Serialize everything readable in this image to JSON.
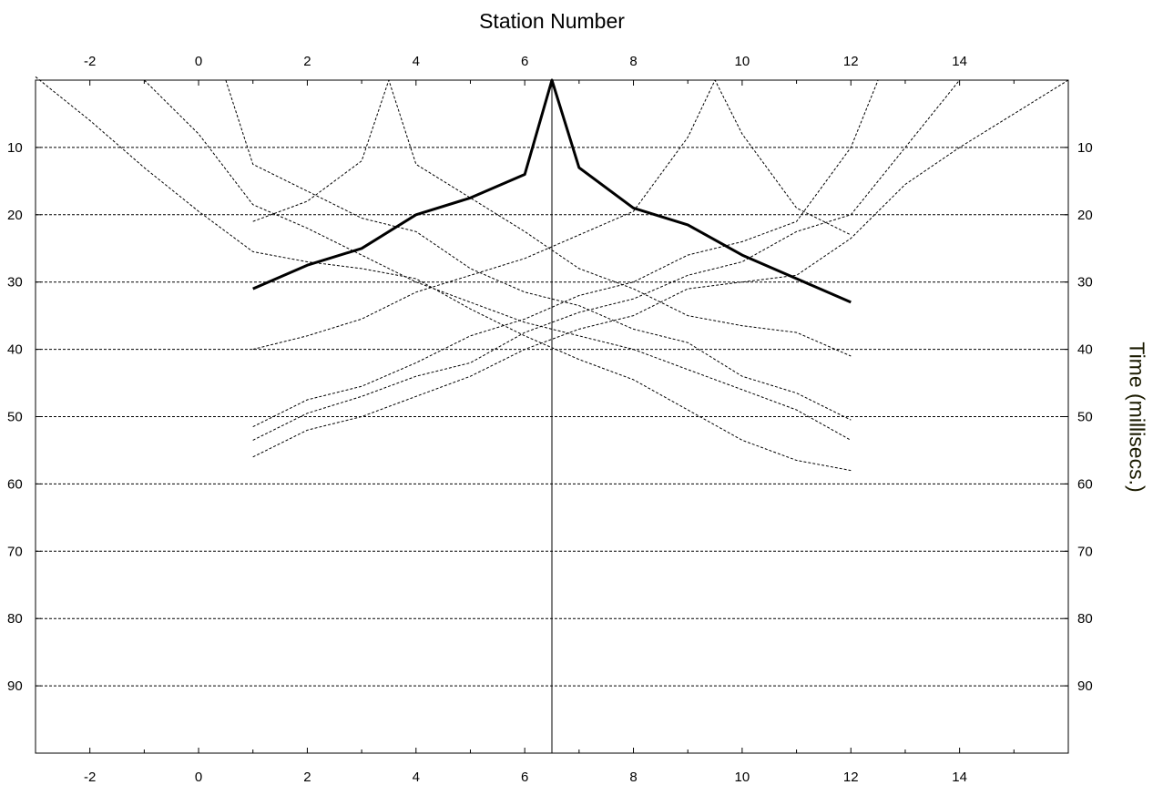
{
  "chart_data": {
    "type": "line",
    "title": "",
    "xlabel": "Station Number",
    "ylabel": "Time (millisecs.)",
    "xlim": [
      -3,
      16
    ],
    "ylim": [
      100,
      0
    ],
    "x_ticks": [
      -2,
      0,
      2,
      4,
      6,
      8,
      10,
      12,
      14
    ],
    "y_ticks": [
      10,
      20,
      30,
      40,
      50,
      60,
      70,
      80,
      90
    ],
    "grid": {
      "horizontal": true,
      "vertical": false
    },
    "vertical_marker_x": 6.5,
    "highlighted_series_index": 0,
    "series": [
      {
        "points": [
          [
            1,
            31
          ],
          [
            2,
            27.5
          ],
          [
            3,
            25
          ],
          [
            4,
            20
          ],
          [
            5,
            17.5
          ],
          [
            6,
            14
          ],
          [
            6.5,
            0
          ],
          [
            7,
            13
          ],
          [
            8,
            19
          ],
          [
            9,
            21.5
          ],
          [
            10,
            26
          ],
          [
            11,
            29.5
          ],
          [
            12,
            33
          ]
        ]
      },
      {
        "points": [
          [
            -3,
            -0.5
          ],
          [
            -2,
            6
          ],
          [
            -1,
            13
          ],
          [
            0,
            19.5
          ],
          [
            1,
            25.5
          ],
          [
            2,
            27
          ],
          [
            3,
            28
          ],
          [
            4,
            29.5
          ],
          [
            5,
            34
          ],
          [
            6,
            38
          ],
          [
            7,
            41.5
          ],
          [
            8,
            44.5
          ],
          [
            9,
            49
          ],
          [
            10,
            53.5
          ],
          [
            11,
            56.5
          ],
          [
            12,
            58
          ]
        ]
      },
      {
        "points": [
          [
            -1,
            0
          ],
          [
            0,
            8
          ],
          [
            1,
            18.5
          ],
          [
            2,
            22
          ],
          [
            3,
            26
          ],
          [
            4,
            30
          ],
          [
            5,
            33
          ],
          [
            6,
            36
          ],
          [
            7,
            38
          ],
          [
            8,
            40
          ],
          [
            9,
            43
          ],
          [
            10,
            46
          ],
          [
            11,
            49
          ],
          [
            12,
            53.5
          ]
        ]
      },
      {
        "points": [
          [
            0.5,
            0
          ],
          [
            1,
            12.5
          ],
          [
            2,
            16.5
          ],
          [
            3,
            20.5
          ],
          [
            4,
            22.5
          ],
          [
            5,
            28
          ],
          [
            6,
            31.5
          ],
          [
            7,
            33.5
          ],
          [
            8,
            37
          ],
          [
            9,
            39
          ],
          [
            10,
            44
          ],
          [
            11,
            46.5
          ],
          [
            12,
            50.5
          ]
        ]
      },
      {
        "points": [
          [
            1,
            21
          ],
          [
            2,
            18
          ],
          [
            3,
            12
          ],
          [
            3.5,
            0
          ],
          [
            4,
            12.5
          ],
          [
            5,
            17.5
          ],
          [
            6,
            22.5
          ],
          [
            7,
            28
          ],
          [
            8,
            31
          ],
          [
            9,
            35
          ],
          [
            10,
            36.5
          ],
          [
            11,
            37.5
          ],
          [
            12,
            41
          ]
        ]
      },
      {
        "points": [
          [
            1,
            40
          ],
          [
            2,
            38
          ],
          [
            3,
            35.5
          ],
          [
            4,
            31.5
          ],
          [
            5,
            29
          ],
          [
            6,
            26.5
          ],
          [
            7,
            23
          ],
          [
            8,
            19.5
          ],
          [
            9,
            8.5
          ],
          [
            9.5,
            0
          ],
          [
            10,
            8
          ],
          [
            11,
            19
          ],
          [
            12,
            23
          ]
        ]
      },
      {
        "points": [
          [
            1,
            51.5
          ],
          [
            2,
            47.5
          ],
          [
            3,
            45.5
          ],
          [
            4,
            42
          ],
          [
            5,
            38
          ],
          [
            6,
            35.5
          ],
          [
            7,
            32
          ],
          [
            8,
            30
          ],
          [
            9,
            26
          ],
          [
            10,
            24
          ],
          [
            11,
            21
          ],
          [
            12,
            10
          ],
          [
            12.5,
            0
          ]
        ]
      },
      {
        "points": [
          [
            1,
            53.5
          ],
          [
            2,
            49.5
          ],
          [
            3,
            47
          ],
          [
            4,
            44
          ],
          [
            5,
            42
          ],
          [
            6,
            37.5
          ],
          [
            7,
            34.5
          ],
          [
            8,
            32.5
          ],
          [
            9,
            29
          ],
          [
            10,
            27
          ],
          [
            11,
            22.5
          ],
          [
            12,
            20
          ],
          [
            14,
            0
          ]
        ]
      },
      {
        "points": [
          [
            1,
            56
          ],
          [
            2,
            52
          ],
          [
            3,
            50
          ],
          [
            4,
            47
          ],
          [
            5,
            44
          ],
          [
            6,
            40
          ],
          [
            7,
            37
          ],
          [
            8,
            35
          ],
          [
            9,
            31
          ],
          [
            10,
            30
          ],
          [
            11,
            29
          ],
          [
            12,
            23.5
          ],
          [
            13,
            15.5
          ],
          [
            14,
            10
          ],
          [
            15,
            5
          ],
          [
            16,
            0
          ]
        ]
      }
    ]
  }
}
